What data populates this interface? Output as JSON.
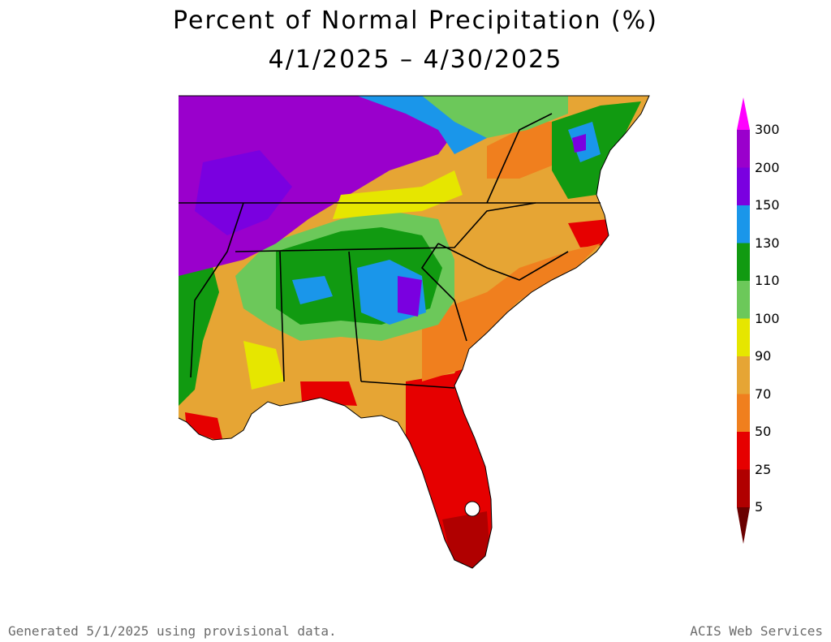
{
  "title": "Percent of Normal Precipitation (%)",
  "date_range": "4/1/2025 – 4/30/2025",
  "legend": {
    "entries": [
      {
        "label": "300",
        "color": "#ff00ff"
      },
      {
        "label": "200",
        "color": "#9a00cc"
      },
      {
        "label": "150",
        "color": "#7a00e0"
      },
      {
        "label": "130",
        "color": "#1a96ea"
      },
      {
        "label": "110",
        "color": "#119a11"
      },
      {
        "label": "100",
        "color": "#6cc85a"
      },
      {
        "label": "90",
        "color": "#e6e600"
      },
      {
        "label": "70",
        "color": "#e6a534"
      },
      {
        "label": "50",
        "color": "#f07f1e"
      },
      {
        "label": "25",
        "color": "#e60000"
      },
      {
        "label": "5",
        "color": "#b00000"
      }
    ],
    "bottom_color": "#6a0000"
  },
  "map_colors": {
    "purple": "#9a00cc",
    "blue": "#1a96ea",
    "green": "#119a11",
    "lightgreen": "#6cc85a",
    "yellow": "#e6e600",
    "tan": "#e6a534",
    "orange": "#f07f1e",
    "red": "#e60000",
    "darkred": "#b00000"
  },
  "footer": {
    "left": "Generated 5/1/2025 using provisional data.",
    "right": "ACIS Web Services"
  }
}
